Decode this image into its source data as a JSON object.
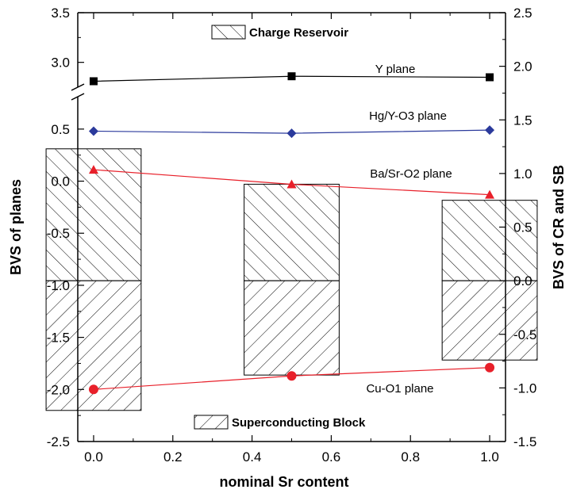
{
  "chart_data": {
    "type": "bar+line",
    "xlabel": "nominal Sr content",
    "ylabel_left": "BVS   of   planes",
    "ylabel_right": "BVS   of   CR and SB",
    "x_ticks": [
      "0.0",
      "0.2",
      "0.4",
      "0.6",
      "0.8",
      "1.0"
    ],
    "x_tick_values": [
      0.0,
      0.2,
      0.4,
      0.6,
      0.8,
      1.0
    ],
    "xlim": [
      -0.04,
      1.04
    ],
    "y_left_ticks_lower": [
      "-2.5",
      "-2.0",
      "-1.5",
      "-1.0",
      "-0.5",
      "0.0",
      "0.5"
    ],
    "y_left_tick_values_lower": [
      -2.5,
      -2.0,
      -1.5,
      -1.0,
      -0.5,
      0.0,
      0.5
    ],
    "y_left_ticks_upper": [
      "3.0",
      "3.5"
    ],
    "y_left_tick_values_upper": [
      3.0,
      3.5
    ],
    "y_left_lower_range": [
      -2.5,
      0.75
    ],
    "y_left_upper_range": [
      2.75,
      3.5
    ],
    "y_right_ticks": [
      "-1.5",
      "-1.0",
      "-0.5",
      "0.0",
      "0.5",
      "1.0",
      "1.5",
      "2.0",
      "2.5"
    ],
    "y_right_tick_values": [
      -1.5,
      -1.0,
      -0.5,
      0.0,
      0.5,
      1.0,
      1.5,
      2.0,
      2.5
    ],
    "ylim_right": [
      -1.5,
      2.5
    ],
    "bar_x": [
      0.0,
      0.5,
      1.0
    ],
    "bar_width": 0.24,
    "bars": {
      "charge_reservoir": {
        "label": "Charge Reservoir",
        "values": [
          1.23,
          0.9,
          0.75
        ]
      },
      "superconducting_block": {
        "label": "Superconducting Block",
        "values": [
          -1.21,
          -0.88,
          -0.74
        ]
      }
    },
    "series": [
      {
        "name": "Y plane",
        "x": [
          0.0,
          0.5,
          1.0
        ],
        "y": [
          2.81,
          2.86,
          2.85
        ],
        "color": "#000000",
        "marker": "square"
      },
      {
        "name": "Hg/Y-O3 plane",
        "x": [
          0.0,
          0.5,
          1.0
        ],
        "y": [
          0.48,
          0.46,
          0.49
        ],
        "color": "#2b3a9c",
        "marker": "diamond"
      },
      {
        "name": "Ba/Sr-O2 plane",
        "x": [
          0.0,
          0.5,
          1.0
        ],
        "y": [
          0.11,
          -0.03,
          -0.13
        ],
        "color": "#e8202a",
        "marker": "triangle"
      },
      {
        "name": "Cu-O1 plane",
        "x": [
          0.0,
          0.5,
          1.0
        ],
        "y": [
          -2.0,
          -1.87,
          -1.79
        ],
        "color": "#e8202a",
        "marker": "circle"
      }
    ]
  }
}
